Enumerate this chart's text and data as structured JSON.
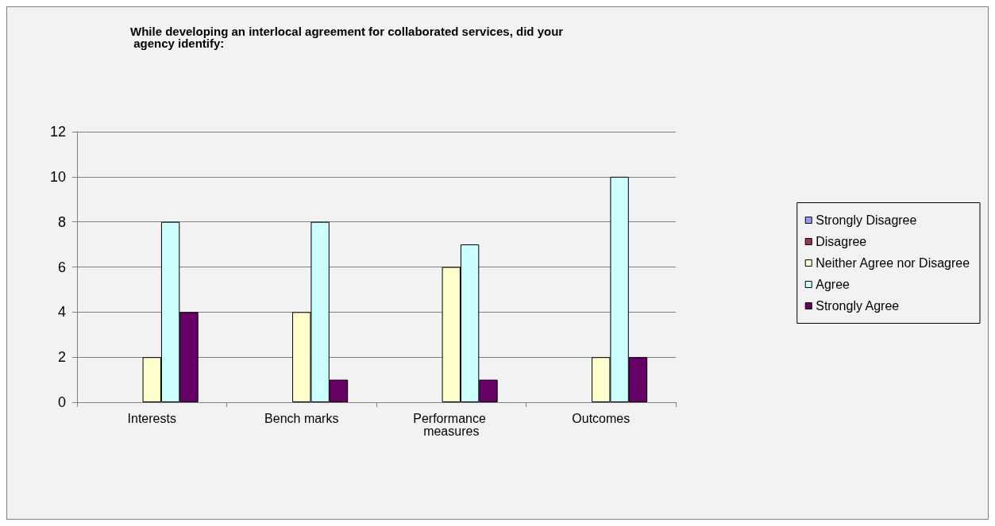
{
  "chart_data": {
    "type": "bar",
    "title": "While developing an interlocal agreement for collaborated services, did your agency identify:",
    "categories": [
      "Interests",
      "Bench marks",
      "Performance measures",
      "Outcomes"
    ],
    "series": [
      {
        "name": "Strongly Disagree",
        "color": "#9999ff",
        "values": [
          0,
          0,
          0,
          0
        ]
      },
      {
        "name": "Disagree",
        "color": "#993366",
        "values": [
          0,
          0,
          0,
          0
        ]
      },
      {
        "name": "Neither Agree nor Disagree",
        "color": "#ffffcc",
        "values": [
          2,
          4,
          6,
          2
        ]
      },
      {
        "name": "Agree",
        "color": "#ccffff",
        "values": [
          8,
          8,
          7,
          10
        ]
      },
      {
        "name": "Strongly Agree",
        "color": "#660066",
        "values": [
          4,
          1,
          1,
          2
        ]
      }
    ],
    "ylim": [
      0,
      12
    ],
    "yticks": [
      0,
      2,
      4,
      6,
      8,
      10,
      12
    ],
    "grid": "y",
    "legend": "right"
  }
}
